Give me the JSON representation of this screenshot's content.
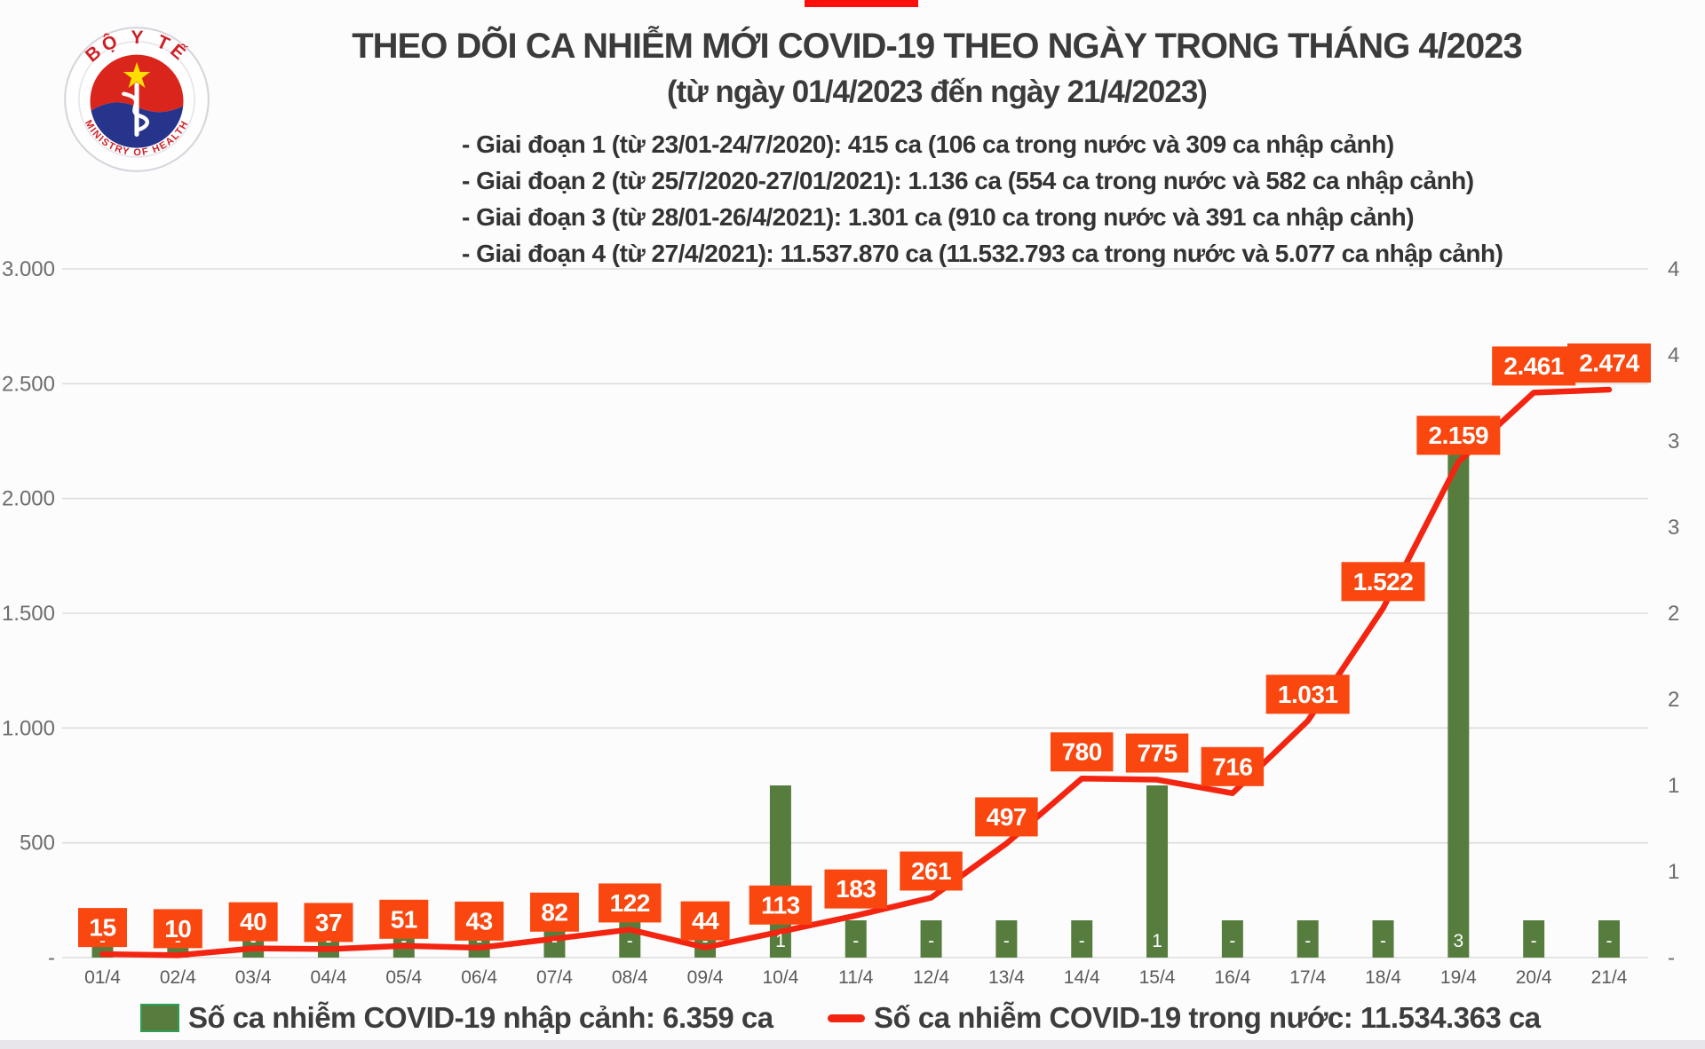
{
  "page": {
    "background": "#fdfcfd",
    "top_marker_color": "#fb100d",
    "bottom_strip_color": "#e8e6ea"
  },
  "logo": {
    "top_text": "BỘ Y TẾ",
    "bottom_text": "MINISTRY OF HEALTH",
    "red": "#da251d",
    "blue": "#27348b",
    "star_color": "#ffdd00",
    "text_color": "#cf2027"
  },
  "header": {
    "title": "THEO DÕI CA NHIỄM MỚI COVID-19 THEO NGÀY TRONG THÁNG 4/2023",
    "subtitle": "(từ ngày 01/4/2023 đến ngày 21/4/2023)",
    "notes": [
      "- Giai đoạn 1 (từ 23/01-24/7/2020): 415 ca (106 ca trong nước và 309 ca nhập cảnh)",
      "- Giai đoạn 2 (từ 25/7/2020-27/01/2021): 1.136 ca (554 ca trong nước và 582 ca nhập cảnh)",
      "- Giai đoạn 3 (từ 28/01-26/4/2021): 1.301 ca (910 ca trong nước và 391 ca nhập cảnh)",
      "- Giai đoạn 4 (từ 27/4/2021): 11.537.870 ca (11.532.793 ca trong nước và 5.077 ca nhập cảnh)"
    ]
  },
  "chart_data": {
    "type": "bar+line combo, dual axis",
    "categories": [
      "01/4",
      "02/4",
      "03/4",
      "04/4",
      "05/4",
      "06/4",
      "07/4",
      "08/4",
      "09/4",
      "10/4",
      "11/4",
      "12/4",
      "13/4",
      "14/4",
      "15/4",
      "16/4",
      "17/4",
      "18/4",
      "19/4",
      "20/4",
      "21/4"
    ],
    "series": [
      {
        "name": "Số ca nhiễm COVID-19 nhập cảnh",
        "type": "bar",
        "axis": "right",
        "color": "#567d3e",
        "values": [
          0,
          0,
          0,
          0,
          0,
          0,
          0,
          0,
          0,
          1,
          0,
          0,
          0,
          0,
          1,
          0,
          0,
          0,
          3,
          0,
          0
        ],
        "labels": [
          "-",
          "-",
          "-",
          "-",
          "-",
          "-",
          "-",
          "-",
          "-",
          "1",
          "-",
          "-",
          "-",
          "-",
          "1",
          "-",
          "-",
          "-",
          "3",
          "-",
          "-"
        ]
      },
      {
        "name": "Số ca nhiễm COVID-19 trong nước",
        "type": "line",
        "axis": "left",
        "color": "#f32511",
        "values": [
          15,
          10,
          40,
          37,
          51,
          43,
          82,
          122,
          44,
          113,
          183,
          261,
          497,
          780,
          775,
          716,
          1031,
          1522,
          2159,
          2461,
          2474
        ],
        "labels": [
          "15",
          "10",
          "40",
          "37",
          "51",
          "43",
          "82",
          "122",
          "44",
          "113",
          "183",
          "261",
          "497",
          "780",
          "775",
          "716",
          "1.031",
          "1.522",
          "2.159",
          "2.461",
          "2.474"
        ]
      }
    ],
    "left_axis": {
      "min": 0,
      "max": 3000,
      "tick_labels": [
        "3.000",
        "2.500",
        "2.000",
        "1.500",
        "1.000",
        "500",
        "-"
      ]
    },
    "right_axis": {
      "min": 0,
      "max": 4,
      "tick_labels": [
        "4",
        "4",
        "3",
        "3",
        "2",
        "2",
        "1",
        "1",
        "-"
      ]
    },
    "label_box_color": "#fa470f",
    "label_text_color": "#ffffff",
    "gridline_color": "#dddddd",
    "axis_text_color": "#6d6d6d",
    "grid": "horizontal only",
    "legend_position": "bottom"
  },
  "legend": {
    "items": [
      {
        "swatch": "bar",
        "label": "Số ca nhiễm COVID-19 nhập cảnh: 6.359 ca"
      },
      {
        "swatch": "line",
        "label": "Số ca nhiễm COVID-19 trong nước: 11.534.363 ca"
      }
    ]
  }
}
